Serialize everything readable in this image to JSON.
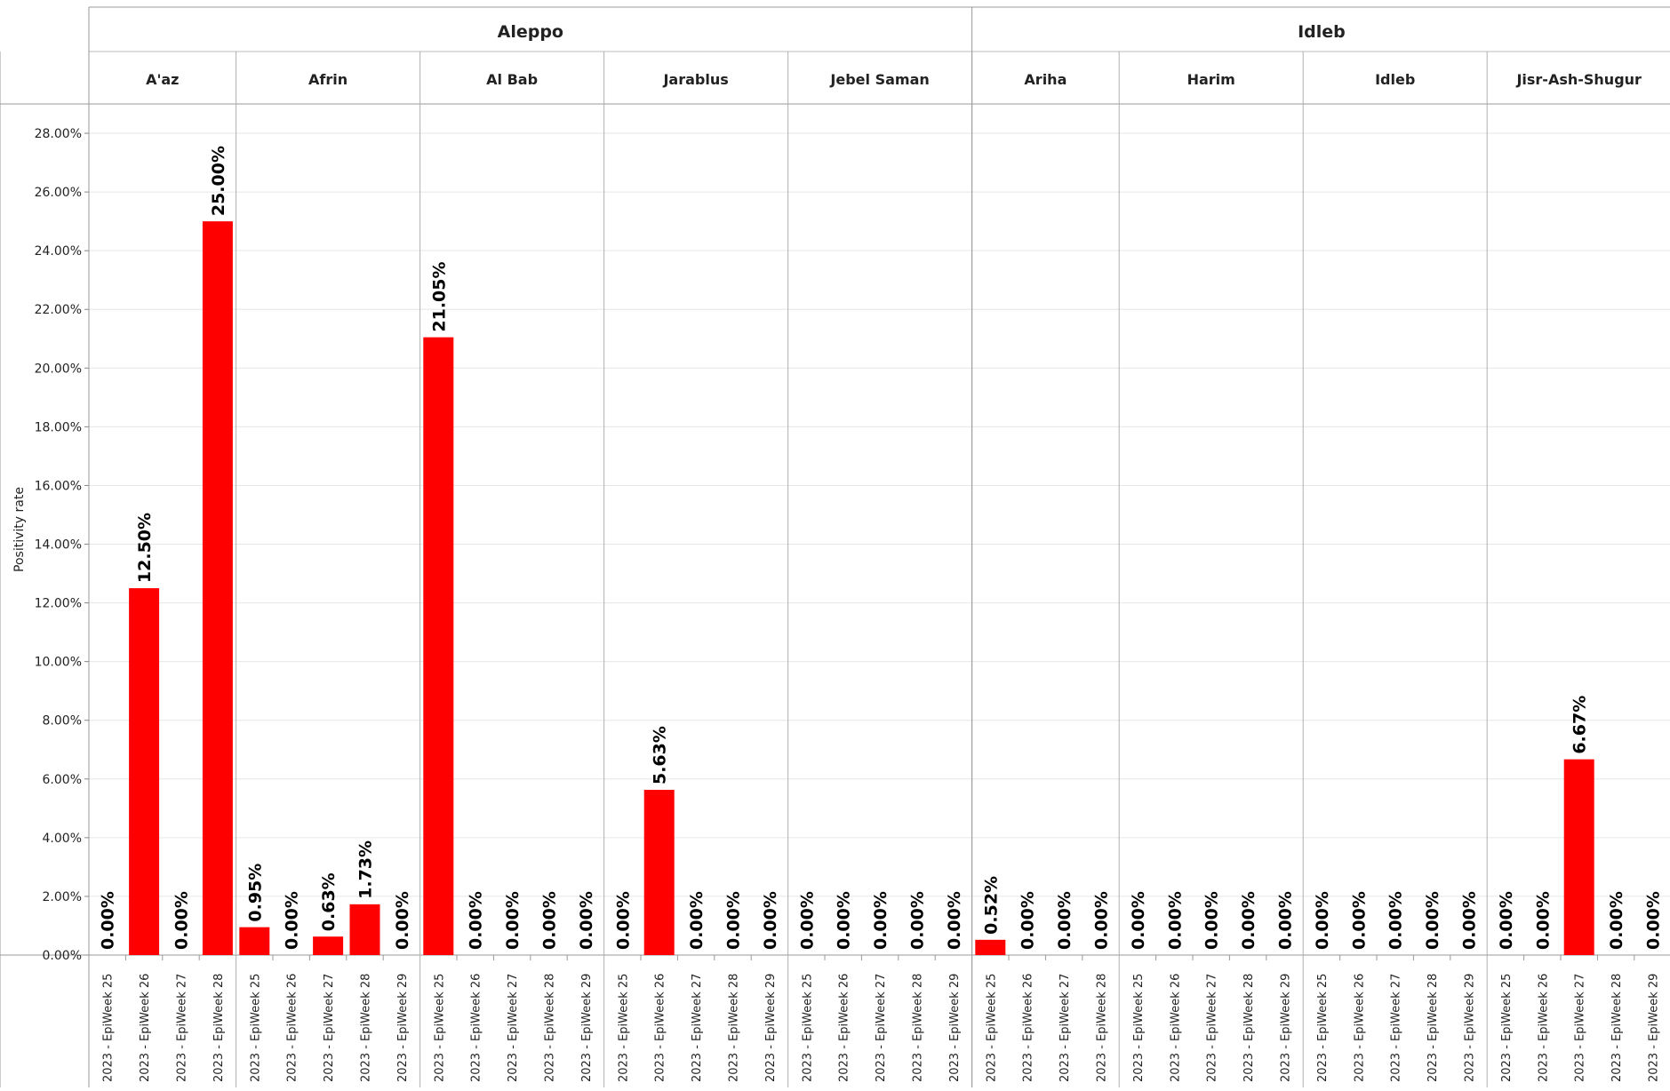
{
  "chart_data": {
    "type": "bar",
    "title": "",
    "ylabel": "Positivity rate",
    "xlabel": "",
    "ylim": [
      0,
      29
    ],
    "y_ticks": [
      "0.00%",
      "2.00%",
      "4.00%",
      "6.00%",
      "8.00%",
      "10.00%",
      "12.00%",
      "14.00%",
      "16.00%",
      "18.00%",
      "20.00%",
      "22.00%",
      "24.00%",
      "26.00%",
      "28.00%"
    ],
    "bar_color": "#ff0000",
    "grid": true,
    "groups": [
      {
        "name": "Aleppo",
        "districts": [
          {
            "name": "A'az",
            "bars": [
              {
                "week": "2023 - EpiWeek 25",
                "value": 0.0,
                "label": "0.00%"
              },
              {
                "week": "2023 - EpiWeek 26",
                "value": 12.5,
                "label": "12.50%"
              },
              {
                "week": "2023 - EpiWeek 27",
                "value": 0.0,
                "label": "0.00%"
              },
              {
                "week": "2023 - EpiWeek 28",
                "value": 25.0,
                "label": "25.00%"
              }
            ]
          },
          {
            "name": "Afrin",
            "bars": [
              {
                "week": "2023 - EpiWeek 25",
                "value": 0.95,
                "label": "0.95%"
              },
              {
                "week": "2023 - EpiWeek 26",
                "value": 0.0,
                "label": "0.00%"
              },
              {
                "week": "2023 - EpiWeek 27",
                "value": 0.63,
                "label": "0.63%"
              },
              {
                "week": "2023 - EpiWeek 28",
                "value": 1.73,
                "label": "1.73%"
              },
              {
                "week": "2023 - EpiWeek 29",
                "value": 0.0,
                "label": "0.00%"
              }
            ]
          },
          {
            "name": "Al Bab",
            "bars": [
              {
                "week": "2023 - EpiWeek 25",
                "value": 21.05,
                "label": "21.05%"
              },
              {
                "week": "2023 - EpiWeek 26",
                "value": 0.0,
                "label": "0.00%"
              },
              {
                "week": "2023 - EpiWeek 27",
                "value": 0.0,
                "label": "0.00%"
              },
              {
                "week": "2023 - EpiWeek 28",
                "value": 0.0,
                "label": "0.00%"
              },
              {
                "week": "2023 - EpiWeek 29",
                "value": 0.0,
                "label": "0.00%"
              }
            ]
          },
          {
            "name": "Jarablus",
            "bars": [
              {
                "week": "2023 - EpiWeek 25",
                "value": 0.0,
                "label": "0.00%"
              },
              {
                "week": "2023 - EpiWeek 26",
                "value": 5.63,
                "label": "5.63%"
              },
              {
                "week": "2023 - EpiWeek 27",
                "value": 0.0,
                "label": "0.00%"
              },
              {
                "week": "2023 - EpiWeek 28",
                "value": 0.0,
                "label": "0.00%"
              },
              {
                "week": "2023 - EpiWeek 29",
                "value": 0.0,
                "label": "0.00%"
              }
            ]
          },
          {
            "name": "Jebel Saman",
            "bars": [
              {
                "week": "2023 - EpiWeek 25",
                "value": 0.0,
                "label": "0.00%"
              },
              {
                "week": "2023 - EpiWeek 26",
                "value": 0.0,
                "label": "0.00%"
              },
              {
                "week": "2023 - EpiWeek 27",
                "value": 0.0,
                "label": "0.00%"
              },
              {
                "week": "2023 - EpiWeek 28",
                "value": 0.0,
                "label": "0.00%"
              },
              {
                "week": "2023 - EpiWeek 29",
                "value": 0.0,
                "label": "0.00%"
              }
            ]
          }
        ]
      },
      {
        "name": "Idleb",
        "districts": [
          {
            "name": "Ariha",
            "bars": [
              {
                "week": "2023 - EpiWeek 25",
                "value": 0.52,
                "label": "0.52%"
              },
              {
                "week": "2023 - EpiWeek 26",
                "value": 0.0,
                "label": "0.00%"
              },
              {
                "week": "2023 - EpiWeek 27",
                "value": 0.0,
                "label": "0.00%"
              },
              {
                "week": "2023 - EpiWeek 28",
                "value": 0.0,
                "label": "0.00%"
              }
            ]
          },
          {
            "name": "Harim",
            "bars": [
              {
                "week": "2023 - EpiWeek 25",
                "value": 0.0,
                "label": "0.00%"
              },
              {
                "week": "2023 - EpiWeek 26",
                "value": 0.0,
                "label": "0.00%"
              },
              {
                "week": "2023 - EpiWeek 27",
                "value": 0.0,
                "label": "0.00%"
              },
              {
                "week": "2023 - EpiWeek 28",
                "value": 0.0,
                "label": "0.00%"
              },
              {
                "week": "2023 - EpiWeek 29",
                "value": 0.0,
                "label": "0.00%"
              }
            ]
          },
          {
            "name": "Idleb",
            "bars": [
              {
                "week": "2023 - EpiWeek 25",
                "value": 0.0,
                "label": "0.00%"
              },
              {
                "week": "2023 - EpiWeek 26",
                "value": 0.0,
                "label": "0.00%"
              },
              {
                "week": "2023 - EpiWeek 27",
                "value": 0.0,
                "label": "0.00%"
              },
              {
                "week": "2023 - EpiWeek 28",
                "value": 0.0,
                "label": "0.00%"
              },
              {
                "week": "2023 - EpiWeek 29",
                "value": 0.0,
                "label": "0.00%"
              }
            ]
          },
          {
            "name": "Jisr-Ash-Shugur",
            "bars": [
              {
                "week": "2023 - EpiWeek 25",
                "value": 0.0,
                "label": "0.00%"
              },
              {
                "week": "2023 - EpiWeek 26",
                "value": 0.0,
                "label": "0.00%"
              },
              {
                "week": "2023 - EpiWeek 27",
                "value": 6.67,
                "label": "6.67%"
              },
              {
                "week": "2023 - EpiWeek 28",
                "value": 0.0,
                "label": "0.00%"
              },
              {
                "week": "2023 - EpiWeek 29",
                "value": 0.0,
                "label": "0.00%"
              }
            ]
          }
        ]
      }
    ]
  }
}
